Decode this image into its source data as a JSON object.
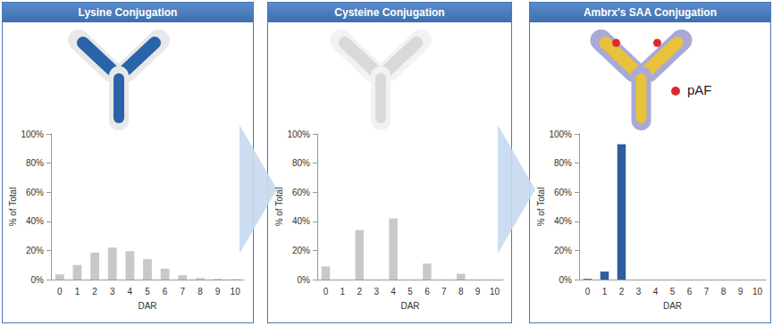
{
  "chart_data": [
    {
      "type": "bar",
      "title": "Lysine Conjugation",
      "categories": [
        "0",
        "1",
        "2",
        "3",
        "4",
        "5",
        "6",
        "7",
        "8",
        "9",
        "10"
      ],
      "values": [
        3.5,
        10,
        18.5,
        22,
        19.5,
        14,
        7.5,
        3,
        1,
        0.5,
        0.3
      ],
      "color": "#c8c8c8",
      "xlabel": "DAR",
      "ylabel": "% of Total",
      "ylim": [
        0,
        100
      ],
      "yticks": [
        {
          "value": 0,
          "label": "0%"
        },
        {
          "value": 20,
          "label": "20%"
        },
        {
          "value": 40,
          "label": "40%"
        },
        {
          "value": 60,
          "label": "60%"
        },
        {
          "value": 80,
          "label": "80%"
        },
        {
          "value": 100,
          "label": "100%"
        }
      ],
      "grid": false
    },
    {
      "type": "bar",
      "title": "Cysteine Conjugation",
      "categories": [
        "0",
        "1",
        "2",
        "3",
        "4",
        "5",
        "6",
        "7",
        "8",
        "9",
        "10"
      ],
      "values": [
        9,
        0,
        34,
        0,
        42,
        0,
        11,
        0,
        4,
        0,
        0
      ],
      "color": "#c8c8c8",
      "xlabel": "DAR",
      "ylabel": "% of Total",
      "ylim": [
        0,
        100
      ],
      "yticks": [
        {
          "value": 0,
          "label": "0%"
        },
        {
          "value": 20,
          "label": "20%"
        },
        {
          "value": 40,
          "label": "40%"
        },
        {
          "value": 60,
          "label": "60%"
        },
        {
          "value": 80,
          "label": "80%"
        },
        {
          "value": 100,
          "label": "100%"
        }
      ],
      "grid": false
    },
    {
      "type": "bar",
      "title": "Ambrx's SAA Conjugation",
      "categories": [
        "0",
        "1",
        "2",
        "3",
        "4",
        "5",
        "6",
        "7",
        "8",
        "9",
        "10"
      ],
      "values": [
        0.5,
        5.5,
        93,
        0,
        0,
        0,
        0,
        0,
        0,
        0,
        0
      ],
      "color": "#2e5c9e",
      "xlabel": "DAR",
      "ylabel": "% of Total",
      "ylim": [
        0,
        100
      ],
      "yticks": [
        {
          "value": 0,
          "label": "0%"
        },
        {
          "value": 20,
          "label": "20%"
        },
        {
          "value": 40,
          "label": "40%"
        },
        {
          "value": 60,
          "label": "60%"
        },
        {
          "value": 80,
          "label": "80%"
        },
        {
          "value": 100,
          "label": "100%"
        }
      ],
      "grid": false,
      "annotations": [
        {
          "text": "pAF",
          "color": "#e0282e"
        }
      ]
    }
  ]
}
